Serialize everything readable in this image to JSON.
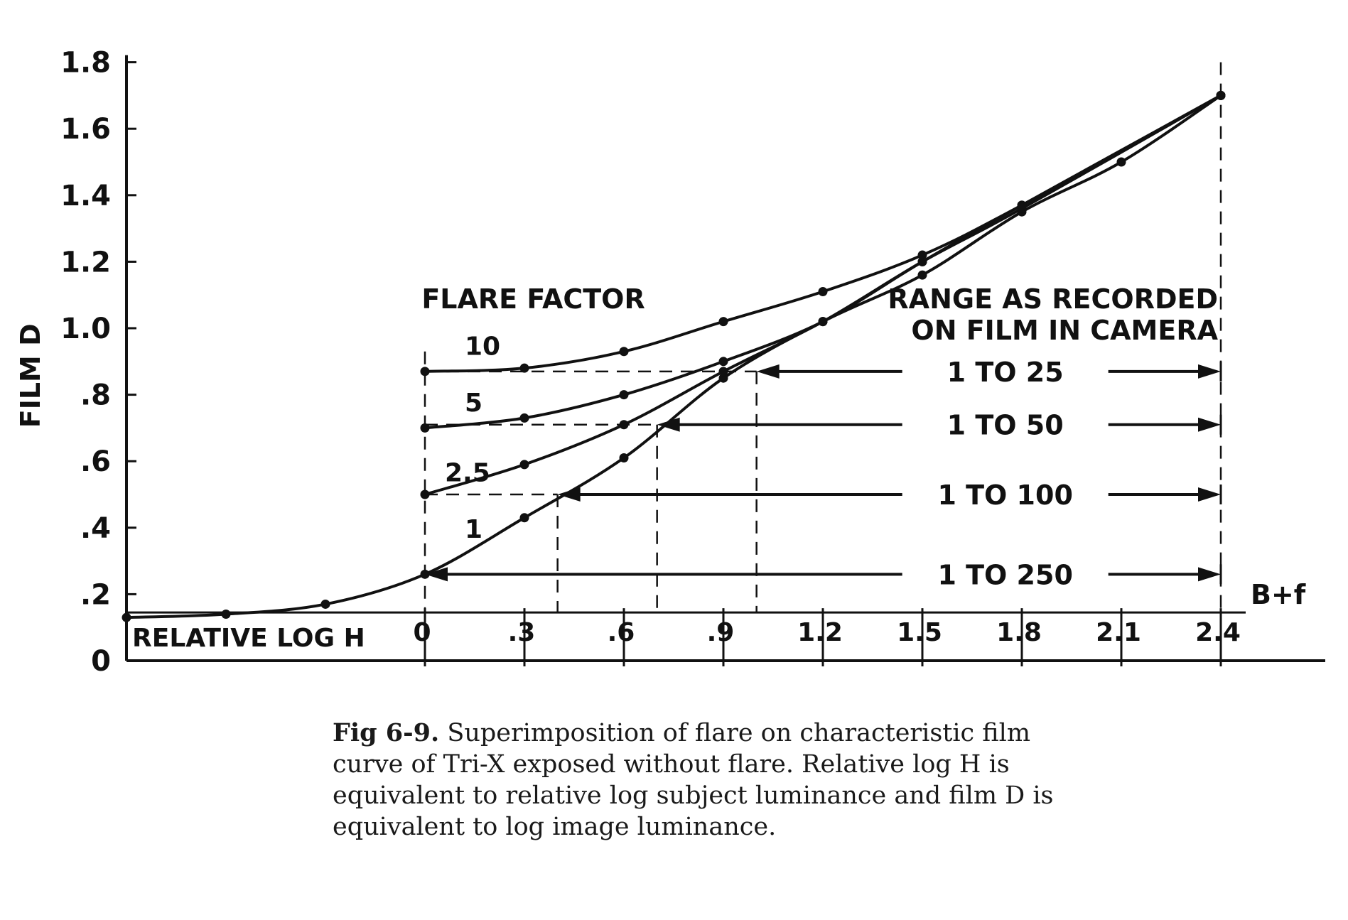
{
  "chart_data": {
    "type": "line",
    "title": "",
    "xlabel": "RELATIVE LOG H",
    "ylabel": "FILM D",
    "xlim": [
      -0.9,
      2.7
    ],
    "ylim": [
      0,
      1.8
    ],
    "x_ticks": [
      {
        "v": 0,
        "label": "0"
      },
      {
        "v": 0.3,
        "label": ".3"
      },
      {
        "v": 0.6,
        "label": ".6"
      },
      {
        "v": 0.9,
        "label": ".9"
      },
      {
        "v": 1.2,
        "label": "1.2"
      },
      {
        "v": 1.5,
        "label": "1.5"
      },
      {
        "v": 1.8,
        "label": "1.8"
      },
      {
        "v": 2.1,
        "label": "2.1"
      },
      {
        "v": 2.4,
        "label": "2.4"
      }
    ],
    "y_ticks": [
      {
        "v": 0.2,
        "label": ".2"
      },
      {
        "v": 0.4,
        "label": ".4"
      },
      {
        "v": 0.6,
        "label": ".6"
      },
      {
        "v": 0.8,
        "label": ".8"
      },
      {
        "v": 1.0,
        "label": "1.0"
      },
      {
        "v": 1.2,
        "label": "1.2"
      },
      {
        "v": 1.4,
        "label": "1.4"
      },
      {
        "v": 1.6,
        "label": "1.6"
      },
      {
        "v": 1.8,
        "label": "1.8"
      }
    ],
    "y_zero_label": "0",
    "base_fog": {
      "label": "B+f",
      "y": 0.145
    },
    "legend_title": "FLARE FACTOR",
    "series": [
      {
        "name": "1",
        "points": [
          [
            -0.9,
            0.13
          ],
          [
            -0.6,
            0.14
          ],
          [
            -0.3,
            0.17
          ],
          [
            0,
            0.26
          ],
          [
            0.3,
            0.43
          ],
          [
            0.6,
            0.61
          ],
          [
            0.9,
            0.85
          ],
          [
            1.2,
            1.02
          ],
          [
            1.5,
            1.16
          ],
          [
            1.8,
            1.35
          ],
          [
            2.1,
            1.5
          ],
          [
            2.4,
            1.7
          ]
        ]
      },
      {
        "name": "2.5",
        "points": [
          [
            0,
            0.5
          ],
          [
            0.3,
            0.59
          ],
          [
            0.6,
            0.71
          ],
          [
            0.9,
            0.87
          ],
          [
            1.2,
            1.02
          ],
          [
            1.5,
            1.2
          ],
          [
            1.8,
            1.36
          ],
          [
            2.4,
            1.7
          ]
        ]
      },
      {
        "name": "5",
        "points": [
          [
            0,
            0.7
          ],
          [
            0.3,
            0.73
          ],
          [
            0.6,
            0.8
          ],
          [
            0.9,
            0.9
          ],
          [
            1.2,
            1.02
          ],
          [
            1.5,
            1.2
          ],
          [
            1.8,
            1.37
          ],
          [
            2.4,
            1.7
          ]
        ]
      },
      {
        "name": "10",
        "points": [
          [
            0,
            0.87
          ],
          [
            0.3,
            0.88
          ],
          [
            0.6,
            0.93
          ],
          [
            0.9,
            1.02
          ],
          [
            1.2,
            1.11
          ],
          [
            1.5,
            1.22
          ],
          [
            1.8,
            1.37
          ],
          [
            2.4,
            1.7
          ]
        ]
      }
    ],
    "range_title": [
      "RANGE AS RECORDED",
      "ON FILM IN CAMERA"
    ],
    "ranges": [
      {
        "label": "1 TO 25",
        "y": 0.87,
        "x_start": 1.0,
        "x_end": 2.4
      },
      {
        "label": "1 TO 50",
        "y": 0.71,
        "x_start": 0.7,
        "x_end": 2.4
      },
      {
        "label": "1 TO 100",
        "y": 0.5,
        "x_start": 0.4,
        "x_end": 2.4
      },
      {
        "label": "1 TO 250",
        "y": 0.26,
        "x_start": 0.0,
        "x_end": 2.4
      }
    ]
  },
  "caption": {
    "title": "Fig 6-9.",
    "text": "Superimposition of flare on characteristic film curve of Tri-X exposed without flare. Relative log H is equivalent to relative log subject luminance and film D is equivalent to log image luminance."
  },
  "colors": {
    "ink": "#111111",
    "paper": "#ffffff"
  }
}
